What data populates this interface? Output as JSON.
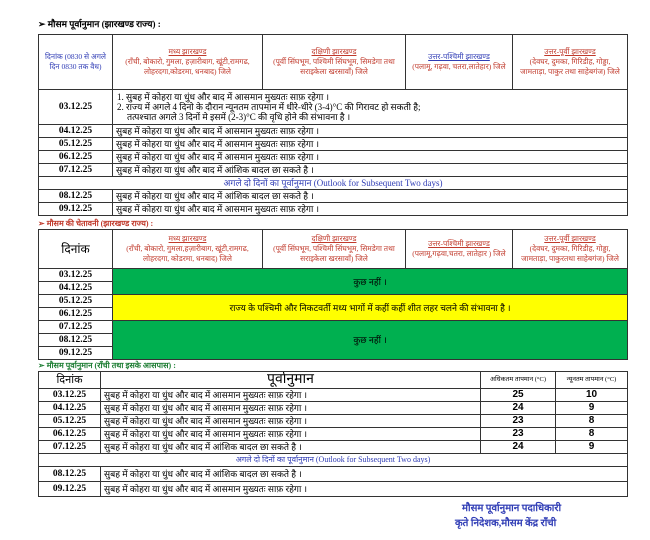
{
  "state_forecast": {
    "heading": "➢  मौसम पूर्वानुमान (झारखण्ड राज्य) :",
    "date_header": "दिनांक (0830 से अगले दिन 0830 तक वैध)",
    "regions": [
      {
        "name": "मध्य झारखण्ड",
        "districts": "(राँची, बोकारो, गुमला, हज़ारीबाग, खूंटी,रामगढ, लोहरदगा,कोडरमा, धनबाद) जिले"
      },
      {
        "name": "दक्षिणी झारखण्ड",
        "districts": "(पूर्वी सिंघभूम, पश्चिमी सिंघभूम, सिमडेगा तथा सराइकेला खरसावाँ) जिले"
      },
      {
        "name": "उत्तर-पश्चिमी झारखण्ड",
        "districts": "(पलामू, गढ़वा, चतरा,लातेहार) जिले"
      },
      {
        "name": "उत्तर-पूर्वी झारखण्ड",
        "districts": "(देवघर, दुमका, गिरिडीह, गोड्डा, जामताड़ा, पाकुर तथा साहेबगंज) जिले"
      }
    ],
    "first_row": {
      "date": "03.12.25",
      "line1": "1. सुबह में कोहरा या धुंध और बाद में आसमान मुख्यतः साफ़ रहेगा ।",
      "line2": "2. राज्य में अगले 4 दिनो के दौरान न्यूनतम तापमान में धीरे-धीरे (3-4)°C की गिरावट हो सकती है;",
      "line3": "तत्पश्चात अगले 3 दिनों मे इसमें (2-3)°C की वृधि होने की संभावना है ।"
    },
    "rows": [
      {
        "date": "04.12.25",
        "text": "सुबह में कोहरा या धुंध और बाद में आसमान मुख्यतः साफ़ रहेगा ।"
      },
      {
        "date": "05.12.25",
        "text": "सुबह में कोहरा या धुंध और बाद में आसमान मुख्यतः साफ़ रहेगा ।"
      },
      {
        "date": "06.12.25",
        "text": "सुबह में कोहरा या धुंध और बाद में आसमान मुख्यतः साफ़ रहेगा ।"
      },
      {
        "date": "07.12.25",
        "text": "सुबह में कोहरा या धुंध और बाद में आंशिक बादल छा सकते है ।"
      }
    ],
    "outlook": "अगले दो दिनों का पूर्वानुमान (Outlook for Subsequent Two days)",
    "outlook_rows": [
      {
        "date": "08.12.25",
        "text": "सुबह में कोहरा या धुंध और बाद में आंशिक बादल छा सकते है ।"
      },
      {
        "date": "09.12.25",
        "text": "सुबह में कोहरा या धुंध और बाद में आसमान मुख्यतः साफ़ रहेगा ।"
      }
    ]
  },
  "warning": {
    "heading": "➢  मौसम की चेतावनी (झारखण्ड राज्य) :",
    "date_header": "दिनांक",
    "regions": [
      {
        "name": "मध्य झारखण्ड",
        "districts": "(राँची, बोकारो, गुमला,हज़ारीबाग, खूंटी,रामगढ, लोहरदगा, कोडरमा, धनबाद) जिले"
      },
      {
        "name": "दक्षिणी झारखण्ड",
        "districts": "(पूर्वी सिंघभूम, पश्चिमी सिंघभूम, सिमडेगा तथा सराइकेला खरसावाँ) जिले"
      },
      {
        "name": "उत्तर-पश्चिमी झारखण्ड",
        "districts": "(पलामू,गढ़वा,चतरा, लातेहार ) जिले"
      },
      {
        "name": "उत्तर-पूर्वी झारखण्ड",
        "districts": "(देवघर, दुमका, गिरिडीह, गोड्डा, जामताड़ा, पाकुरतथा साहेबगंज) जिले"
      }
    ],
    "dates": [
      "03.12.25",
      "04.12.25",
      "05.12.25",
      "06.12.25",
      "07.12.25",
      "08.12.25",
      "09.12.25"
    ],
    "blocks": [
      {
        "text": "कुछ नहीं ।",
        "color": "#00b050"
      },
      {
        "text": "राज्य के पश्चिमी और निकटवर्ती मध्य भागों में कहीं कहीं शीत लहर चलने की संभावना है ।",
        "color": "#ffff00"
      },
      {
        "text": "कुछ नहीं ।",
        "color": "#00b050"
      }
    ]
  },
  "ranchi": {
    "heading": "➢  मौसम पूर्वानुमान (राँची तथा इसके आसपास) :",
    "headers": {
      "date": "दिनांक",
      "forecast": "पूर्वानुमान",
      "max": "अधिकतम तापमान (°C)",
      "min": "न्यूनतम तापमान (°C)"
    },
    "rows": [
      {
        "date": "03.12.25",
        "text": "सुबह में कोहरा या धुंध और बाद में आसमान मुख्यतः साफ़ रहेगा ।",
        "max": "25",
        "min": "10"
      },
      {
        "date": "04.12.25",
        "text": "सुबह में कोहरा या धुंध और बाद में आसमान मुख्यतः साफ़ रहेगा ।",
        "max": "24",
        "min": "9"
      },
      {
        "date": "05.12.25",
        "text": "सुबह में कोहरा या धुंध और बाद में आसमान मुख्यतः साफ़ रहेगा ।",
        "max": "23",
        "min": "8"
      },
      {
        "date": "06.12.25",
        "text": "सुबह में कोहरा या धुंध और बाद में आसमान मुख्यतः साफ़ रहेगा ।",
        "max": "23",
        "min": "8"
      },
      {
        "date": "07.12.25",
        "text": "सुबह में कोहरा या धुंध और बाद में आंशिक बादल छा सकते है ।",
        "max": "24",
        "min": "9"
      }
    ],
    "outlook": "अगले दो दिनों का पूर्वानुमान (Outlook for Subsequent Two days)",
    "outlook_rows": [
      {
        "date": "08.12.25",
        "text": "सुबह में कोहरा या धुंध और बाद में आंशिक बादल छा सकते है ।"
      },
      {
        "date": "09.12.25",
        "text": "सुबह में कोहरा या धुंध और बाद में आसमान मुख्यतः साफ़ रहेगा ।"
      }
    ]
  },
  "signature": {
    "line1": "मौसम  पूर्वानुमान पदाधिकारी",
    "line2": "कृते निदेशक,मौसम केंद्र राँची"
  }
}
